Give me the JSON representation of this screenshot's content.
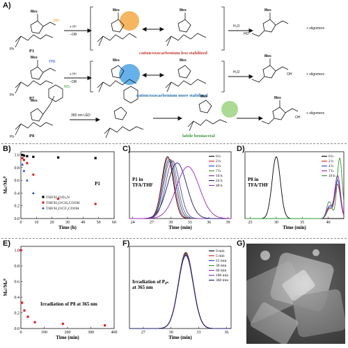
{
  "panels": {
    "A": "A)",
    "B": "B)",
    "C": "C)",
    "D": "D)",
    "E": "E)",
    "F": "F)",
    "G": "G)"
  },
  "schemeA": {
    "row1": {
      "compound": "P1",
      "reagent_top": "+ H⁺",
      "reagent_bottom": "−OR",
      "substituent": "OBn",
      "mes": "Mes",
      "caption": "cation/oxocarbenium less stabilized",
      "product_reagent": "H₂O",
      "product_extra": "+ oligomers",
      "product_oh": "HO"
    },
    "row2": {
      "compound": "P7",
      "reagent_top": "+ H⁺",
      "reagent_bottom": "−OR",
      "substituent": "TPE",
      "mes": "Mes",
      "caption": "cation/oxocarbenium more stabilized",
      "product_reagent": "H₂O",
      "product_extra": "+ oligomers",
      "product_oh": "OH"
    },
    "row3": {
      "compound": "P8",
      "reagent_top": "365 nm LED",
      "substituent": "NO₂",
      "mes": "Mes",
      "caption": "labile hemiacetal",
      "product_extra": "+ oligomers",
      "product_oh": "OH"
    },
    "ph": "Ph",
    "colors": {
      "orange": "#f4a43a",
      "blue": "#4ba3e6",
      "green": "#8ccf6e",
      "caption_red": "#c0392b",
      "caption_blue": "#1f6fb2",
      "caption_green": "#3a9a3a"
    }
  },
  "chart_data": [
    {
      "panel": "B",
      "type": "scatter",
      "xlabel": "Time (h)",
      "ylabel": "Mₙᵗ/Mₙ⁰",
      "xlim": [
        0,
        60
      ],
      "ylim": [
        0,
        1.05
      ],
      "xticks": [
        0,
        10,
        20,
        30,
        40,
        50,
        60
      ],
      "yticks": [
        0.0,
        0.2,
        0.4,
        0.6,
        0.8,
        1.0
      ],
      "inset_label": "P1",
      "series": [
        {
          "name": "THF/H₂O/Et₃N",
          "color": "#000000",
          "marker": "square",
          "x": [
            1,
            2,
            4,
            8,
            24,
            48
          ],
          "y": [
            1.0,
            0.99,
            0.98,
            0.97,
            0.96,
            0.95
          ]
        },
        {
          "name": "THF/H₂O/CH₃COOH",
          "color": "#e02020",
          "marker": "circle",
          "x": [
            1,
            2,
            4,
            8,
            24,
            48
          ],
          "y": [
            0.95,
            0.92,
            0.87,
            0.69,
            0.31,
            0.23
          ]
        },
        {
          "name": "THF/H₂O/CF₃COOH",
          "color": "#1a3fd0",
          "marker": "triangle",
          "x": [
            1,
            2,
            4,
            8
          ],
          "y": [
            0.85,
            0.75,
            0.6,
            0.4
          ]
        }
      ]
    },
    {
      "panel": "C",
      "type": "line",
      "xlabel": "Time (min)",
      "xlim": [
        23.5,
        39.5
      ],
      "xticks": [
        24,
        27,
        30,
        33,
        36,
        39
      ],
      "annotation": [
        "P1 in",
        "TFA/THF"
      ],
      "series": [
        {
          "name": "0 h",
          "color": "#000000",
          "center": 29.5,
          "width": 0.9,
          "height": 1.0
        },
        {
          "name": "2 h",
          "color": "#e02020",
          "center": 29.6,
          "width": 0.95,
          "height": 0.98
        },
        {
          "name": "4 h",
          "color": "#1a3fd0",
          "center": 29.8,
          "width": 1.0,
          "height": 0.96
        },
        {
          "name": "7 h",
          "color": "#2a9a2a",
          "center": 30.0,
          "width": 1.05,
          "height": 0.95
        },
        {
          "name": "10 h",
          "color": "#7b2fbe",
          "center": 30.3,
          "width": 1.1,
          "height": 0.93
        },
        {
          "name": "24 h",
          "color": "#1a1a6e",
          "center": 31.0,
          "width": 1.5,
          "height": 0.9
        },
        {
          "name": "48 h",
          "color": "#a020c0",
          "center": 32.7,
          "width": 1.8,
          "height": 0.84
        }
      ]
    },
    {
      "panel": "D",
      "type": "line",
      "xlabel": "Time (min)",
      "xlim": [
        24,
        43
      ],
      "xticks": [
        25,
        30,
        35,
        40
      ],
      "annotation": [
        "P8 in",
        "TFA/THF"
      ],
      "series": [
        {
          "name": "0 h",
          "color": "#000000",
          "center": 30.0,
          "width": 0.8,
          "height": 1.0
        },
        {
          "name": "2 h",
          "color": "#e02020",
          "center": 41.8,
          "width": 0.55,
          "height": 0.55
        },
        {
          "name": "4 h",
          "color": "#1a3fd0",
          "center": 41.8,
          "width": 0.55,
          "height": 0.62
        },
        {
          "name": "7 h",
          "color": "#a020c0",
          "center": 41.8,
          "width": 0.55,
          "height": 0.7
        },
        {
          "name": "10 h",
          "color": "#2a9a2a",
          "center": 42.2,
          "width": 0.5,
          "height": 0.98
        }
      ]
    },
    {
      "panel": "E",
      "type": "scatter",
      "xlabel": "Time (min)",
      "ylabel": "Mₙᵗ/Mₙ⁰",
      "xlim": [
        0,
        400
      ],
      "ylim": [
        0,
        1.05
      ],
      "xticks": [
        0,
        100,
        200,
        300,
        400
      ],
      "yticks": [
        0.0,
        0.2,
        0.4,
        0.6,
        0.8,
        1.0
      ],
      "annotation": "Irradiation of P8 at 365 nm",
      "series": [
        {
          "name": "P8",
          "color": "#e02020",
          "marker": "square",
          "x": [
            0,
            5,
            15,
            30,
            60,
            180,
            360
          ],
          "y": [
            1.0,
            0.33,
            0.23,
            0.15,
            0.08,
            0.06,
            0.04
          ]
        }
      ]
    },
    {
      "panel": "F",
      "type": "line",
      "xlabel": "Time (min)",
      "xlim": [
        25.5,
        36.5
      ],
      "xticks": [
        27,
        30,
        33,
        36
      ],
      "annotation": [
        "Irradiation of P₈ₙ",
        "at 365 nm"
      ],
      "series": [
        {
          "name": "0 min",
          "color": "#000000",
          "center": 31.6,
          "width": 0.8,
          "height": 1.0
        },
        {
          "name": "5 min",
          "color": "#e02020",
          "center": 31.6,
          "width": 0.8,
          "height": 0.99
        },
        {
          "name": "15 min",
          "color": "#1a3fd0",
          "center": 31.6,
          "width": 0.8,
          "height": 0.98
        },
        {
          "name": "30 min",
          "color": "#2a9a2a",
          "center": 31.6,
          "width": 0.8,
          "height": 0.98
        },
        {
          "name": "60 min",
          "color": "#a020c0",
          "center": 31.6,
          "width": 0.8,
          "height": 0.97
        },
        {
          "name": "180 min",
          "color": "#7b2fbe",
          "center": 31.6,
          "width": 0.8,
          "height": 0.97
        },
        {
          "name": "360 min",
          "color": "#1a1a6e",
          "center": 31.6,
          "width": 0.8,
          "height": 0.96
        }
      ]
    }
  ],
  "panelG": {
    "description_color": "#8a8a8a"
  }
}
